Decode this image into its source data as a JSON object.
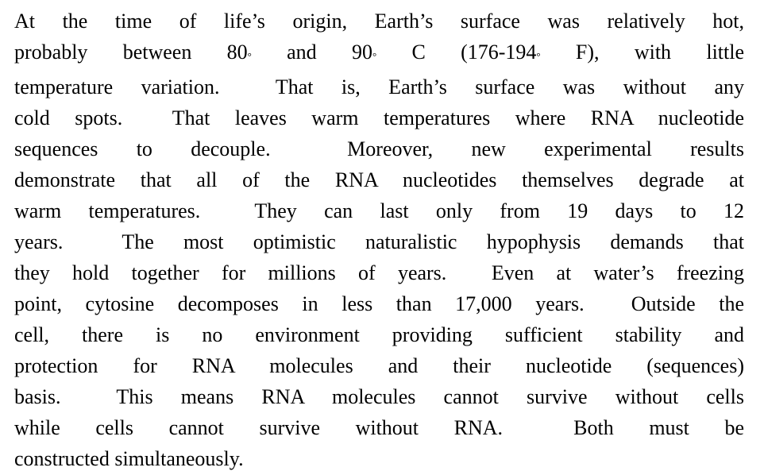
{
  "page": {
    "background_color": "#ffffff",
    "text_color": "#000000"
  },
  "doc": {
    "lines": [
      "At the time of life’s origin, Earth’s surface was relatively hot,",
      "probably between 80° and 90° C (176-194° F), with little",
      "temperature variation.  That is, Earth’s surface was without any",
      "cold spots.  That leaves warm temperatures where RNA nucleotide",
      "sequences to decouple.  Moreover, new experimental results",
      "demonstrate that all of the RNA nucleotides themselves degrade at",
      "warm temperatures.  They can last only from 19 days to 12",
      "years.  The most optimistic naturalistic hypophysis demands that",
      "they hold together for millions of years.  Even at water’s freezing",
      "point, cytosine decomposes in less than 17,000 years.  Outside the",
      "cell, there is no environment providing sufficient stability and",
      "protection for RNA molecules and their nucleotide (sequences)",
      "basis.  This means RNA molecules cannot survive without cells",
      "while cells cannot survive without RNA.  Both must be",
      "constructed simultaneously."
    ]
  }
}
